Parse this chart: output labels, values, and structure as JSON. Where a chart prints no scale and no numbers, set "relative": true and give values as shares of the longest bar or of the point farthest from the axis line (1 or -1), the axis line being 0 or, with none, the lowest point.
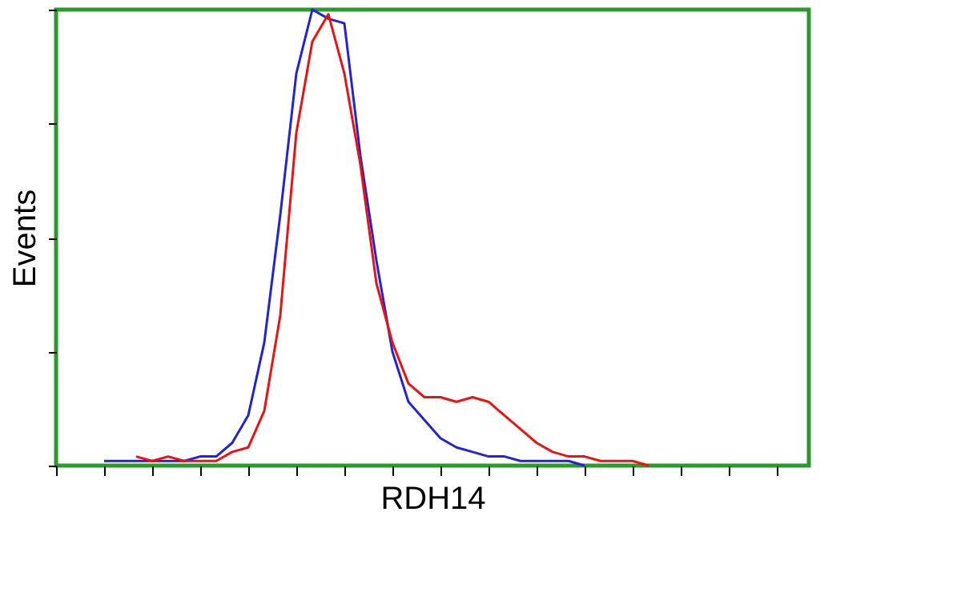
{
  "chart_data": {
    "type": "line",
    "relative": true,
    "xlabel": "RDH14",
    "ylabel": "Events",
    "tick_labels": false,
    "grid": false,
    "legend": false,
    "categories": [
      null,
      null,
      null,
      null,
      null,
      null,
      null,
      null,
      null,
      null,
      null,
      null,
      null,
      null,
      null,
      null,
      null,
      null,
      null,
      null,
      null,
      null,
      null,
      null,
      null,
      null,
      null,
      null,
      null,
      null,
      null,
      null,
      null,
      null,
      null,
      null,
      null,
      null,
      null,
      null,
      null,
      null,
      null,
      null,
      null,
      null,
      null,
      null
    ],
    "series": [
      {
        "color": "#2222dd",
        "values": [
          null,
          null,
          null,
          0.01,
          0.01,
          0.01,
          0.01,
          0.01,
          0.01,
          0.02,
          0.02,
          0.05,
          0.11,
          0.27,
          0.55,
          0.86,
          1.0,
          0.98,
          0.97,
          0.68,
          0.45,
          0.25,
          0.14,
          0.1,
          0.06,
          0.04,
          0.03,
          0.02,
          0.02,
          0.01,
          0.01,
          0.01,
          0.01,
          0,
          null,
          null,
          null,
          null,
          null,
          null,
          null,
          null,
          null,
          null,
          null,
          null,
          null,
          null
        ]
      },
      {
        "color": "#ee1111",
        "values": [
          null,
          null,
          null,
          null,
          null,
          0.02,
          0.01,
          0.02,
          0.01,
          0.01,
          0.01,
          0.03,
          0.04,
          0.12,
          0.33,
          0.73,
          0.93,
          0.99,
          0.86,
          0.66,
          0.4,
          0.27,
          0.18,
          0.15,
          0.15,
          0.14,
          0.15,
          0.14,
          0.11,
          0.08,
          0.05,
          0.03,
          0.02,
          0.02,
          0.01,
          0.01,
          0.01,
          0,
          null,
          null,
          null,
          null,
          null,
          null,
          null,
          null,
          null,
          null
        ]
      }
    ]
  }
}
